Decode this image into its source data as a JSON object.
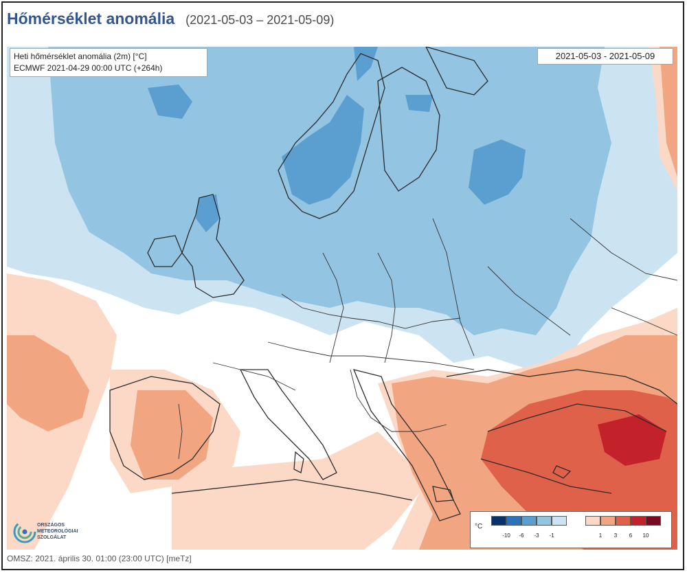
{
  "header": {
    "title": "Hőmérséklet anomália",
    "period": "(2021-05-03 – 2021-05-09)"
  },
  "map": {
    "info_line1": "Heti hőmérséklet anomália (2m) [°C]",
    "info_line2": "ECMWF 2021-04-29 00:00 UTC (+264h)",
    "date_range": "2021-05-03 - 2021-05-09",
    "anomaly_colors": {
      "cold_extreme": "#08306b",
      "cold_strong": "#2c72b8",
      "cold_moderate": "#5b9fd1",
      "cold_weak": "#93c4e2",
      "cold_slight": "#cce3f1",
      "neutral": "#ffffff",
      "warm_slight": "#fbd9c6",
      "warm_weak": "#f2a581",
      "warm_moderate": "#e0614a",
      "warm_strong": "#c4222a",
      "warm_extreme": "#7a0a1f"
    }
  },
  "legend": {
    "unit": "°C",
    "cold_swatches": [
      "#08306b",
      "#2c72b8",
      "#5b9fd1",
      "#93c4e2",
      "#cce3f1"
    ],
    "warm_swatches": [
      "#fbd9c6",
      "#f2a581",
      "#e0614a",
      "#c4222a",
      "#7a0a1f"
    ],
    "cold_labels": [
      "-10",
      "-6",
      "-3",
      "-1"
    ],
    "warm_labels": [
      "1",
      "3",
      "6",
      "10"
    ]
  },
  "logo": {
    "line1": "ORSZÁGOS",
    "line2": "METEOROLÓGIAI",
    "line3": "SZOLGÁLAT"
  },
  "footer": {
    "text": "OMSZ: 2021. április 30. 01:00 (23:00 UTC)  [meTz]"
  }
}
